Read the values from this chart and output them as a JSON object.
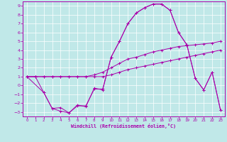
{
  "xlabel": "Windchill (Refroidissement éolien,°C)",
  "bg_color": "#c0e8e8",
  "line_color": "#aa00aa",
  "grid_color": "#ffffff",
  "xlim": [
    -0.5,
    23.5
  ],
  "ylim": [
    -3.5,
    9.5
  ],
  "xticks": [
    0,
    1,
    2,
    3,
    4,
    5,
    6,
    7,
    8,
    9,
    10,
    11,
    12,
    13,
    14,
    15,
    16,
    17,
    18,
    19,
    20,
    21,
    22,
    23
  ],
  "yticks": [
    -3,
    -2,
    -1,
    0,
    1,
    2,
    3,
    4,
    5,
    6,
    7,
    8,
    9
  ],
  "lines": [
    {
      "x": [
        0,
        1,
        2,
        3,
        4,
        5,
        6,
        7,
        8,
        9,
        10,
        11,
        12,
        13,
        14,
        15,
        16,
        17,
        18,
        19,
        20,
        21,
        22,
        23
      ],
      "y": [
        1.0,
        1.0,
        1.0,
        1.0,
        1.0,
        1.0,
        1.0,
        1.0,
        1.2,
        1.5,
        2.0,
        2.5,
        3.0,
        3.2,
        3.5,
        3.8,
        4.0,
        4.2,
        4.4,
        4.5,
        4.6,
        4.7,
        4.8,
        5.0
      ]
    },
    {
      "x": [
        0,
        1,
        2,
        3,
        4,
        5,
        6,
        7,
        8,
        9,
        10,
        11,
        12,
        13,
        14,
        15,
        16,
        17,
        18,
        19,
        20,
        21,
        22,
        23
      ],
      "y": [
        1.0,
        1.0,
        1.0,
        1.0,
        1.0,
        1.0,
        1.0,
        1.0,
        1.0,
        1.0,
        1.2,
        1.5,
        1.8,
        2.0,
        2.2,
        2.4,
        2.6,
        2.8,
        3.0,
        3.2,
        3.4,
        3.6,
        3.8,
        4.0
      ]
    },
    {
      "x": [
        0,
        1,
        2,
        3,
        4,
        5,
        6,
        7,
        8,
        9,
        10,
        11,
        12,
        13,
        14,
        15,
        16,
        17,
        18,
        19,
        20,
        21,
        22,
        23
      ],
      "y": [
        1.0,
        1.0,
        -0.8,
        -2.6,
        -2.9,
        -3.1,
        -2.2,
        -2.4,
        -0.3,
        -0.5,
        3.2,
        5.0,
        7.0,
        8.2,
        8.8,
        9.2,
        9.2,
        8.5,
        6.0,
        4.6,
        0.8,
        -0.5,
        1.5,
        -2.8
      ]
    },
    {
      "x": [
        0,
        2,
        3,
        4,
        5,
        6,
        7,
        8,
        9,
        10,
        11,
        12,
        13,
        14,
        15,
        16,
        17,
        18,
        19,
        20,
        21,
        22,
        23
      ],
      "y": [
        1.0,
        -0.8,
        -2.6,
        -2.5,
        -3.1,
        -2.3,
        -2.3,
        -0.4,
        -0.4,
        3.2,
        5.0,
        7.0,
        8.2,
        8.8,
        9.2,
        9.2,
        8.5,
        6.0,
        4.6,
        0.8,
        -0.5,
        1.5,
        -2.8
      ]
    }
  ]
}
